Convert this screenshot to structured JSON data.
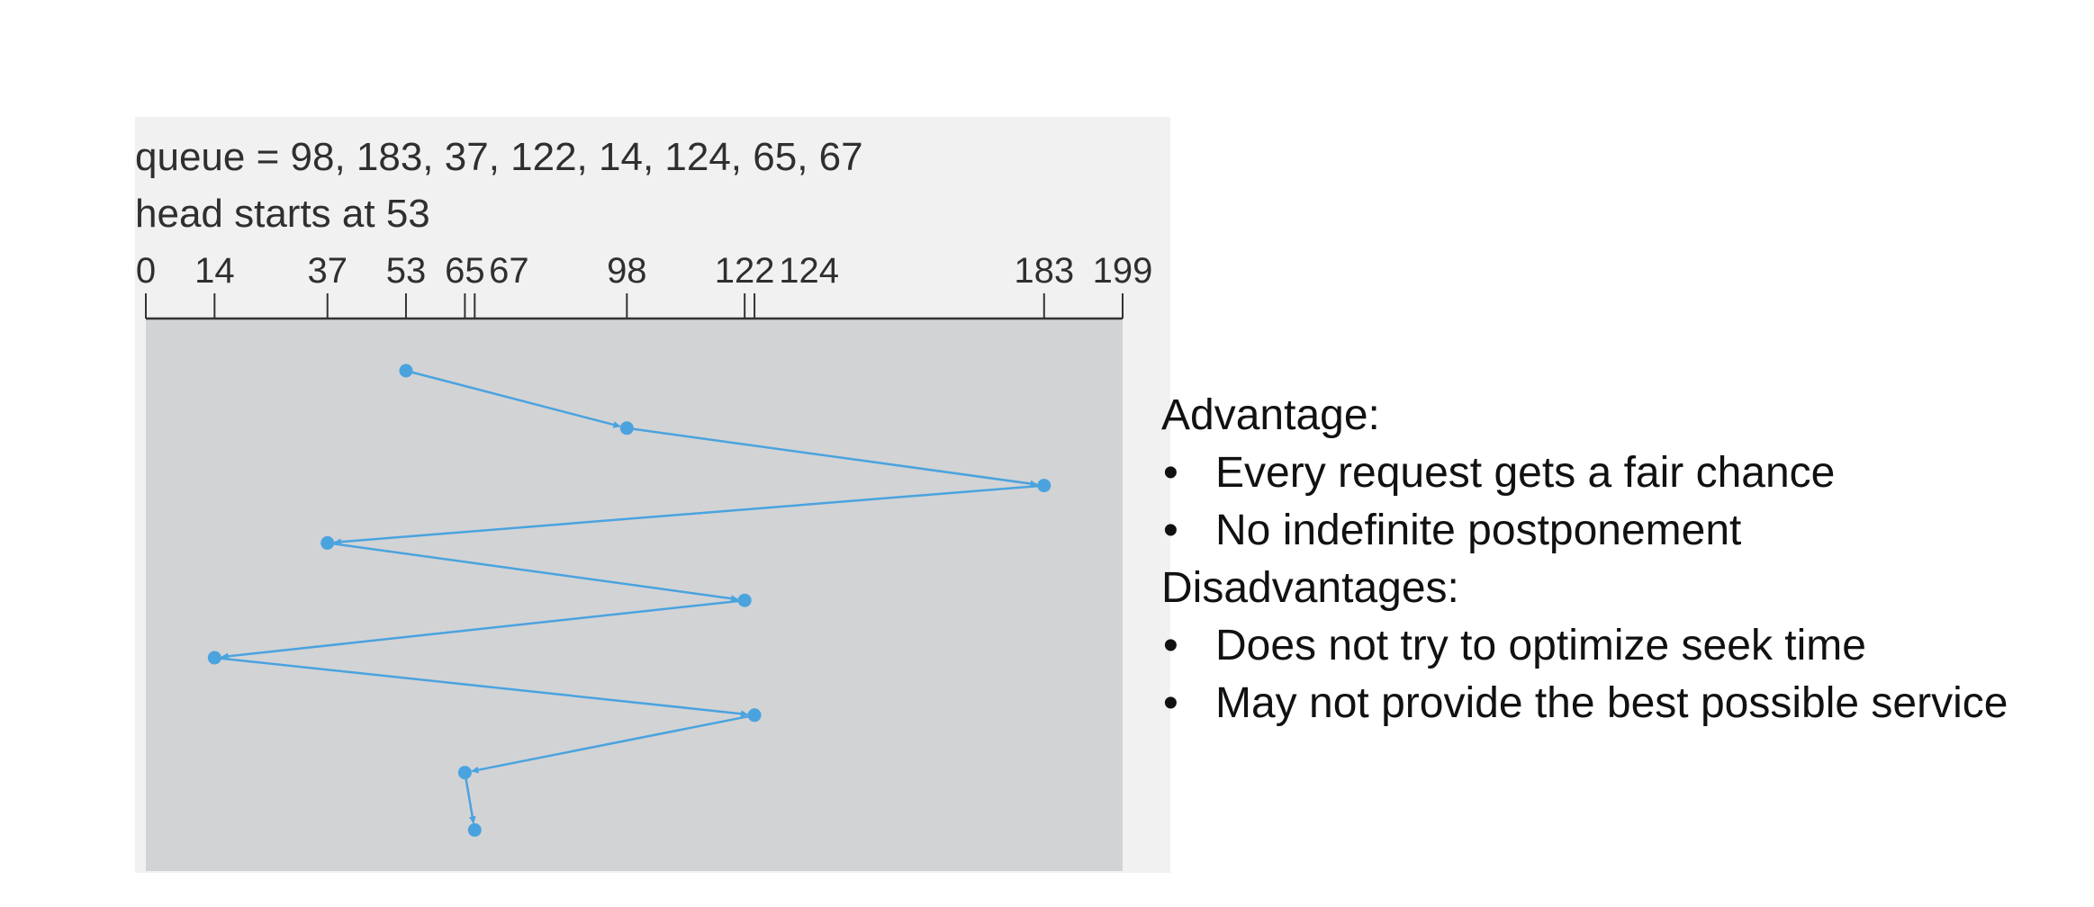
{
  "diagram": {
    "queue_text": "queue = 98, 183, 37, 122, 14, 124, 65, 67",
    "head_text": "head starts at 53",
    "axis": {
      "min": 0,
      "max": 199,
      "ticks": [
        {
          "value": 0,
          "label": "0"
        },
        {
          "value": 14,
          "label": "14"
        },
        {
          "value": 37,
          "label": "37"
        },
        {
          "value": 53,
          "label": "53"
        },
        {
          "value": 65,
          "label": "65"
        },
        {
          "value": 67,
          "label": "67"
        },
        {
          "value": 98,
          "label": "98"
        },
        {
          "value": 122,
          "label": "122"
        },
        {
          "value": 124,
          "label": "124"
        },
        {
          "value": 183,
          "label": "183"
        },
        {
          "value": 199,
          "label": "199"
        }
      ]
    },
    "head_path": [
      53,
      98,
      183,
      37,
      122,
      14,
      124,
      65,
      67
    ],
    "colors": {
      "path": "#4aa3df",
      "panel": "#d2d3d5",
      "axis": "#333333"
    }
  },
  "notes": {
    "advantage_heading": "Advantage:",
    "advantages": [
      "Every request gets a fair chance",
      "No indefinite postponement"
    ],
    "disadvantage_heading": "Disadvantages:",
    "disadvantages": [
      "Does not try to optimize seek time",
      "May not provide the best possible service"
    ],
    "bullet_glyph": "•"
  }
}
